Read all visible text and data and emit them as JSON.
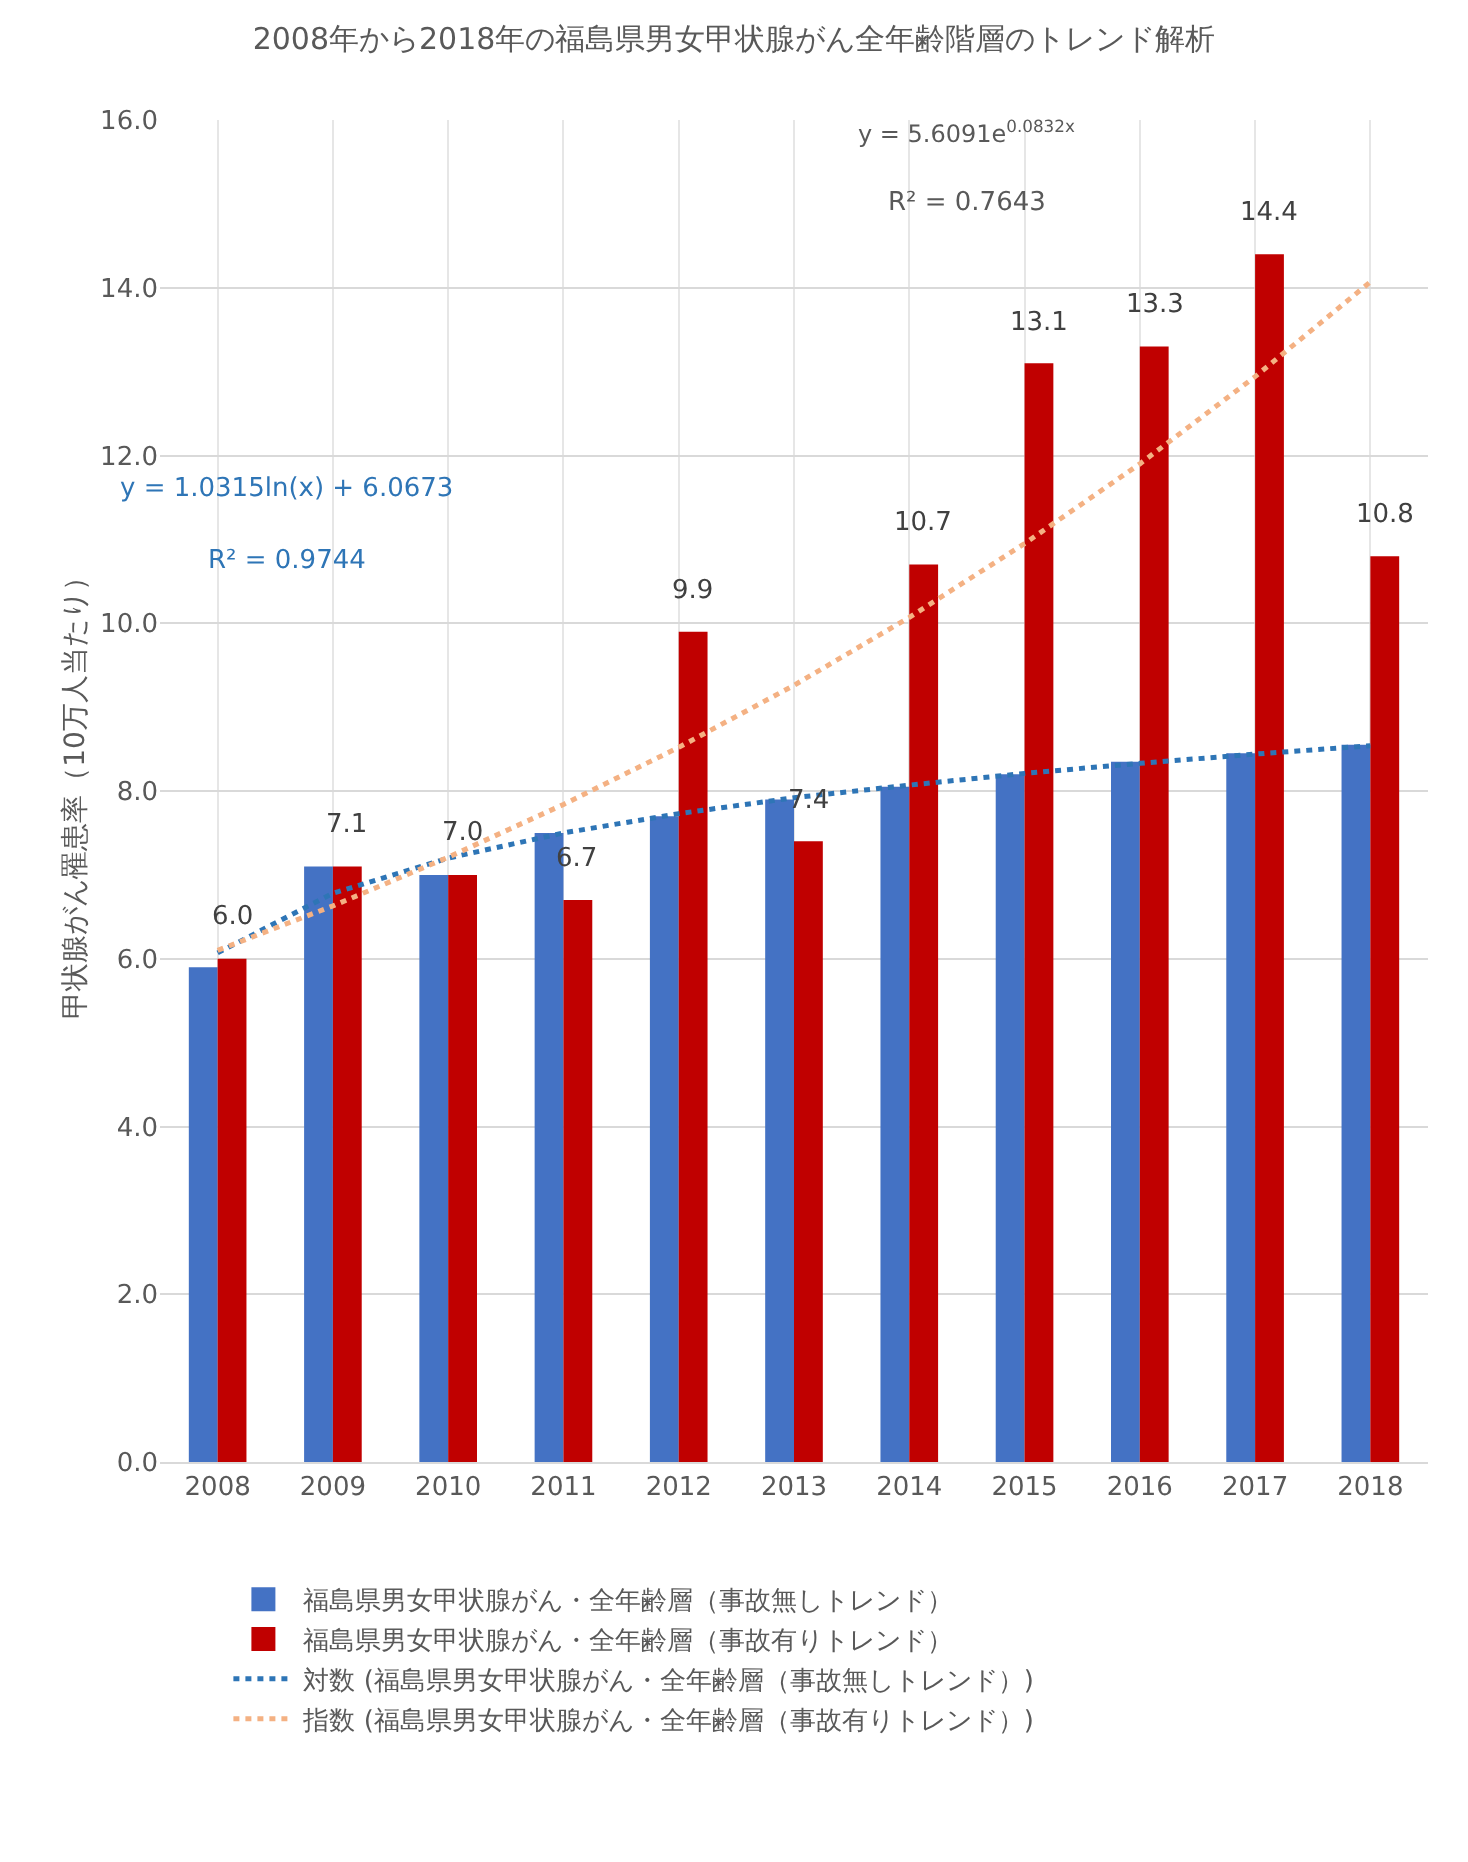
{
  "chart_data": {
    "type": "bar",
    "title": "2008年から2018年の福島県男女甲状腺がん全年齢階層のトレンド解析",
    "ylabel": "甲状腺がん罹患率（10万人当たり）",
    "categories": [
      "2008",
      "2009",
      "2010",
      "2011",
      "2012",
      "2013",
      "2014",
      "2015",
      "2016",
      "2017",
      "2018"
    ],
    "series": [
      {
        "name": "福島県男女甲状腺がん・全年齢層（事故無しトレンド）",
        "color": "#4472c4",
        "values": [
          5.9,
          7.1,
          7.0,
          7.5,
          7.7,
          7.9,
          8.05,
          8.2,
          8.35,
          8.45,
          8.55
        ]
      },
      {
        "name": "福島県男女甲状腺がん・全年齢層（事故有りトレンド）",
        "color": "#c00000",
        "values": [
          6.0,
          7.1,
          7.0,
          6.7,
          9.9,
          7.4,
          10.7,
          13.1,
          13.3,
          14.4,
          10.8
        ],
        "value_labels": [
          "6.0",
          "7.1",
          "7.0",
          "6.7",
          "9.9",
          "7.4",
          "10.7",
          "13.1",
          "13.3",
          "14.4",
          "10.8"
        ]
      },
      {
        "name": "対数 (福島県男女甲状腺がん・全年齢層（事故無しトレンド）)",
        "type": "line",
        "line_style": "dotted",
        "marker": "none",
        "color": "#2e75b6",
        "values": [
          6.07,
          6.78,
          7.2,
          7.5,
          7.73,
          7.92,
          8.07,
          8.21,
          8.33,
          8.44,
          8.54
        ]
      },
      {
        "name": "指数 (福島県男女甲状腺がん・全年齢層（事故有りトレンド）)",
        "type": "line",
        "line_style": "dotted",
        "marker": "none",
        "color": "#f4b183",
        "values": [
          6.1,
          6.63,
          7.21,
          7.84,
          8.52,
          9.26,
          10.07,
          10.95,
          11.9,
          12.94,
          14.07
        ]
      }
    ],
    "annotations": [
      "y = 5.6091e$^{0.0832x}$",
      "R² = 0.7643",
      "y = 1.0315ln(x) + 6.0673",
      "R² = 0.9744"
    ],
    "ylim": [
      0,
      16
    ],
    "yticks": [
      {
        "value": 0,
        "label": "0.0"
      },
      {
        "value": 2,
        "label": "2.0"
      },
      {
        "value": 4,
        "label": "4.0"
      },
      {
        "value": 6,
        "label": "6.0"
      },
      {
        "value": 8,
        "label": "8.0"
      },
      {
        "value": 10,
        "label": "10.0"
      },
      {
        "value": 12,
        "label": "12.0"
      },
      {
        "value": 14,
        "label": "14.0"
      },
      {
        "value": 16,
        "label": "16.0"
      }
    ],
    "grid": true,
    "legend": "bottom"
  }
}
